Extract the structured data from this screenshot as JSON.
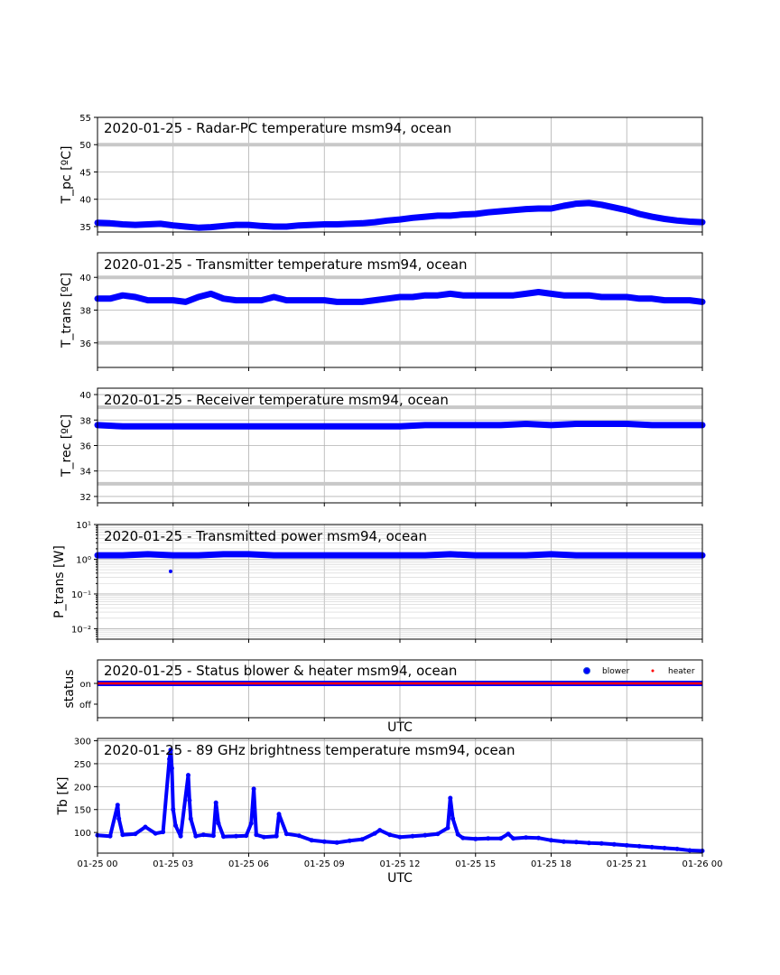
{
  "chart_data": [
    {
      "type": "scatter",
      "title": "2020-01-25 - Radar-PC temperature msm94, ocean",
      "ylabel": "T_pc [ºC]",
      "ylim": [
        34,
        55
      ],
      "yticks": [
        35,
        40,
        45,
        50,
        55
      ],
      "hlines": [
        50
      ],
      "series": [
        {
          "color": "#0000ff",
          "x": [
            0,
            0.5,
            1,
            1.5,
            2,
            2.5,
            3,
            3.5,
            4,
            4.5,
            5,
            5.5,
            6,
            6.5,
            7,
            7.5,
            8,
            8.5,
            9,
            9.5,
            10,
            10.5,
            11,
            11.5,
            12,
            12.5,
            13,
            13.5,
            14,
            14.5,
            15,
            15.5,
            16,
            16.5,
            17,
            17.5,
            18,
            18.5,
            19,
            19.5,
            20,
            20.5,
            21,
            21.5,
            22,
            22.5,
            23,
            23.5,
            24
          ],
          "y": [
            35.7,
            35.6,
            35.4,
            35.3,
            35.4,
            35.5,
            35.2,
            35.0,
            34.8,
            34.9,
            35.1,
            35.3,
            35.3,
            35.1,
            35.0,
            35.0,
            35.2,
            35.3,
            35.4,
            35.4,
            35.5,
            35.6,
            35.8,
            36.1,
            36.3,
            36.6,
            36.8,
            37.0,
            37.0,
            37.2,
            37.3,
            37.6,
            37.8,
            38.0,
            38.2,
            38.3,
            38.3,
            38.8,
            39.2,
            39.3,
            39.0,
            38.5,
            38.0,
            37.3,
            36.8,
            36.4,
            36.1,
            35.9,
            35.8
          ]
        }
      ]
    },
    {
      "type": "scatter",
      "title": "2020-01-25 - Transmitter temperature msm94, ocean",
      "ylabel": "T_trans [ºC]",
      "ylim": [
        34.5,
        41.5
      ],
      "yticks": [
        36,
        38,
        40
      ],
      "hlines": [
        36,
        40
      ],
      "series": [
        {
          "color": "#0000ff",
          "x": [
            0,
            0.5,
            1,
            1.5,
            2,
            2.5,
            3,
            3.5,
            4,
            4.5,
            5,
            5.5,
            6,
            6.5,
            7,
            7.5,
            8,
            8.5,
            9,
            9.5,
            10,
            10.5,
            11,
            11.5,
            12,
            12.5,
            13,
            13.5,
            14,
            14.5,
            15,
            15.5,
            16,
            16.5,
            17,
            17.5,
            18,
            18.5,
            19,
            19.5,
            20,
            20.5,
            21,
            21.5,
            22,
            22.5,
            23,
            23.5,
            24
          ],
          "y": [
            38.7,
            38.7,
            38.9,
            38.8,
            38.6,
            38.6,
            38.6,
            38.5,
            38.8,
            39.0,
            38.7,
            38.6,
            38.6,
            38.6,
            38.8,
            38.6,
            38.6,
            38.6,
            38.6,
            38.5,
            38.5,
            38.5,
            38.6,
            38.7,
            38.8,
            38.8,
            38.9,
            38.9,
            39.0,
            38.9,
            38.9,
            38.9,
            38.9,
            38.9,
            39.0,
            39.1,
            39.0,
            38.9,
            38.9,
            38.9,
            38.8,
            38.8,
            38.8,
            38.7,
            38.7,
            38.6,
            38.6,
            38.6,
            38.5
          ]
        }
      ]
    },
    {
      "type": "scatter",
      "title": "2020-01-25 - Receiver temperature msm94, ocean",
      "ylabel": "T_rec [ºC]",
      "ylim": [
        31.5,
        40.5
      ],
      "yticks": [
        32,
        34,
        36,
        38,
        40
      ],
      "hlines": [
        33,
        39
      ],
      "series": [
        {
          "color": "#0000ff",
          "x": [
            0,
            1,
            2,
            3,
            4,
            5,
            6,
            7,
            8,
            9,
            10,
            11,
            12,
            13,
            14,
            15,
            16,
            17,
            18,
            19,
            20,
            21,
            22,
            23,
            24
          ],
          "y": [
            37.6,
            37.5,
            37.5,
            37.5,
            37.5,
            37.5,
            37.5,
            37.5,
            37.5,
            37.5,
            37.5,
            37.5,
            37.5,
            37.6,
            37.6,
            37.6,
            37.6,
            37.7,
            37.6,
            37.7,
            37.7,
            37.7,
            37.6,
            37.6,
            37.6
          ]
        }
      ]
    },
    {
      "type": "scatter",
      "title": "2020-01-25 - Transmitted power msm94, ocean",
      "ylabel": "P_trans [W]",
      "yscale": "log",
      "ylim": [
        0.005,
        10
      ],
      "yticks": [
        "10⁻²",
        "10⁻¹",
        "10⁰",
        "10¹"
      ],
      "series": [
        {
          "color": "#0000ff",
          "x": [
            0,
            1,
            2,
            3,
            4,
            5,
            6,
            7,
            8,
            9,
            10,
            11,
            12,
            13,
            14,
            15,
            16,
            17,
            18,
            19,
            20,
            21,
            22,
            23,
            24
          ],
          "y": [
            1.3,
            1.3,
            1.4,
            1.3,
            1.3,
            1.4,
            1.4,
            1.3,
            1.3,
            1.3,
            1.3,
            1.3,
            1.3,
            1.3,
            1.4,
            1.3,
            1.3,
            1.3,
            1.4,
            1.3,
            1.3,
            1.3,
            1.3,
            1.3,
            1.3
          ]
        }
      ],
      "outliers": [
        {
          "x": 2.9,
          "y": 0.45
        }
      ]
    },
    {
      "type": "scatter",
      "title": "2020-01-25 - Status blower & heater msm94, ocean",
      "ylabel": "status",
      "xlabel": "UTC",
      "yticks": [
        "on",
        "off"
      ],
      "legend_position": "top-right",
      "series": [
        {
          "name": "blower",
          "color": "#0000ff",
          "state": "on",
          "x_range": [
            0,
            24
          ]
        },
        {
          "name": "heater",
          "color": "#ff0000",
          "state": "on",
          "x_range": [
            0,
            24
          ]
        }
      ]
    },
    {
      "type": "scatter",
      "title": "2020-01-25 - 89 GHz brightness temperature msm94, ocean",
      "ylabel": "Tb [K]",
      "xlabel": "UTC",
      "ylim": [
        55,
        305
      ],
      "yticks": [
        100,
        150,
        200,
        250,
        300
      ],
      "xticks": [
        "01-25 00",
        "01-25 03",
        "01-25 06",
        "01-25 09",
        "01-25 12",
        "01-25 15",
        "01-25 18",
        "01-25 21",
        "01-26 00"
      ],
      "series": [
        {
          "color": "#0000ff",
          "x": [
            0,
            0.5,
            0.8,
            0.85,
            1,
            1.5,
            1.9,
            2.3,
            2.6,
            2.85,
            2.9,
            2.95,
            3.0,
            3.1,
            3.3,
            3.6,
            3.65,
            3.7,
            3.9,
            4.2,
            4.6,
            4.7,
            4.8,
            5.0,
            5.5,
            5.9,
            6.1,
            6.2,
            6.3,
            6.6,
            7.1,
            7.2,
            7.5,
            8.0,
            8.5,
            9.0,
            9.5,
            10.0,
            10.5,
            11.0,
            11.2,
            11.6,
            12.0,
            12.5,
            13.0,
            13.5,
            13.9,
            14.0,
            14.1,
            14.3,
            14.5,
            15.0,
            15.5,
            16.0,
            16.3,
            16.5,
            17.0,
            17.5,
            18.0,
            18.5,
            19.0,
            19.5,
            20.0,
            20.5,
            21.0,
            21.5,
            22.0,
            22.5,
            23.0,
            23.5,
            24.0
          ],
          "y": [
            94,
            92,
            160,
            130,
            95,
            97,
            112,
            98,
            101,
            260,
            280,
            240,
            150,
            115,
            92,
            225,
            170,
            130,
            92,
            95,
            93,
            165,
            120,
            91,
            92,
            93,
            120,
            195,
            95,
            90,
            92,
            140,
            97,
            93,
            83,
            80,
            78,
            82,
            85,
            98,
            105,
            95,
            90,
            92,
            94,
            97,
            110,
            175,
            130,
            96,
            88,
            86,
            87,
            87,
            97,
            87,
            89,
            88,
            83,
            80,
            79,
            77,
            76,
            74,
            72,
            70,
            68,
            66,
            64,
            61,
            60
          ]
        }
      ]
    }
  ]
}
